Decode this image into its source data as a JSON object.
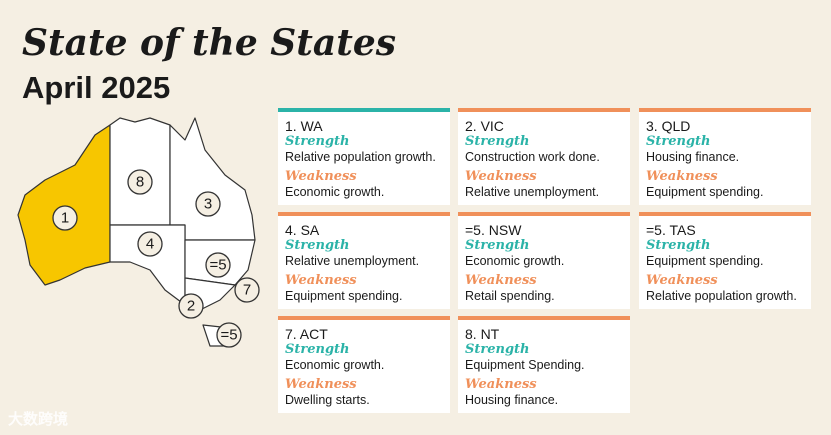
{
  "header": {
    "title": "State of the States",
    "subtitle": "April 2025"
  },
  "cards": [
    {
      "rank": "1. WA",
      "strength_label": "Strength",
      "strength": "Relative population growth.",
      "weakness_label": "Weakness",
      "weakness": "Economic growth."
    },
    {
      "rank": "2. VIC",
      "strength_label": "Strength",
      "strength": "Construction work done.",
      "weakness_label": "Weakness",
      "weakness": "Relative unemployment."
    },
    {
      "rank": "3. QLD",
      "strength_label": "Strength",
      "strength": "Housing finance.",
      "weakness_label": "Weakness",
      "weakness": "Equipment spending."
    },
    {
      "rank": "4. SA",
      "strength_label": "Strength",
      "strength": "Relative unemployment.",
      "weakness_label": "Weakness",
      "weakness": "Equipment spending."
    },
    {
      "rank": "=5. NSW",
      "strength_label": "Strength",
      "strength": "Economic growth.",
      "weakness_label": "Weakness",
      "weakness": "Retail spending."
    },
    {
      "rank": "=5. TAS",
      "strength_label": "Strength",
      "strength": "Equipment spending.",
      "weakness_label": "Weakness",
      "weakness": "Relative population growth."
    },
    {
      "rank": "7. ACT",
      "strength_label": "Strength",
      "strength": "Economic growth.",
      "weakness_label": "Weakness",
      "weakness": "Dwelling starts."
    },
    {
      "rank": "8. NT",
      "strength_label": "Strength",
      "strength": "Equipment Spending.",
      "weakness_label": "Weakness",
      "weakness": "Housing finance."
    }
  ],
  "map_labels": [
    "1",
    "8",
    "3",
    "4",
    "=5",
    "7",
    "2",
    "=5"
  ],
  "watermark": "大数跨境"
}
